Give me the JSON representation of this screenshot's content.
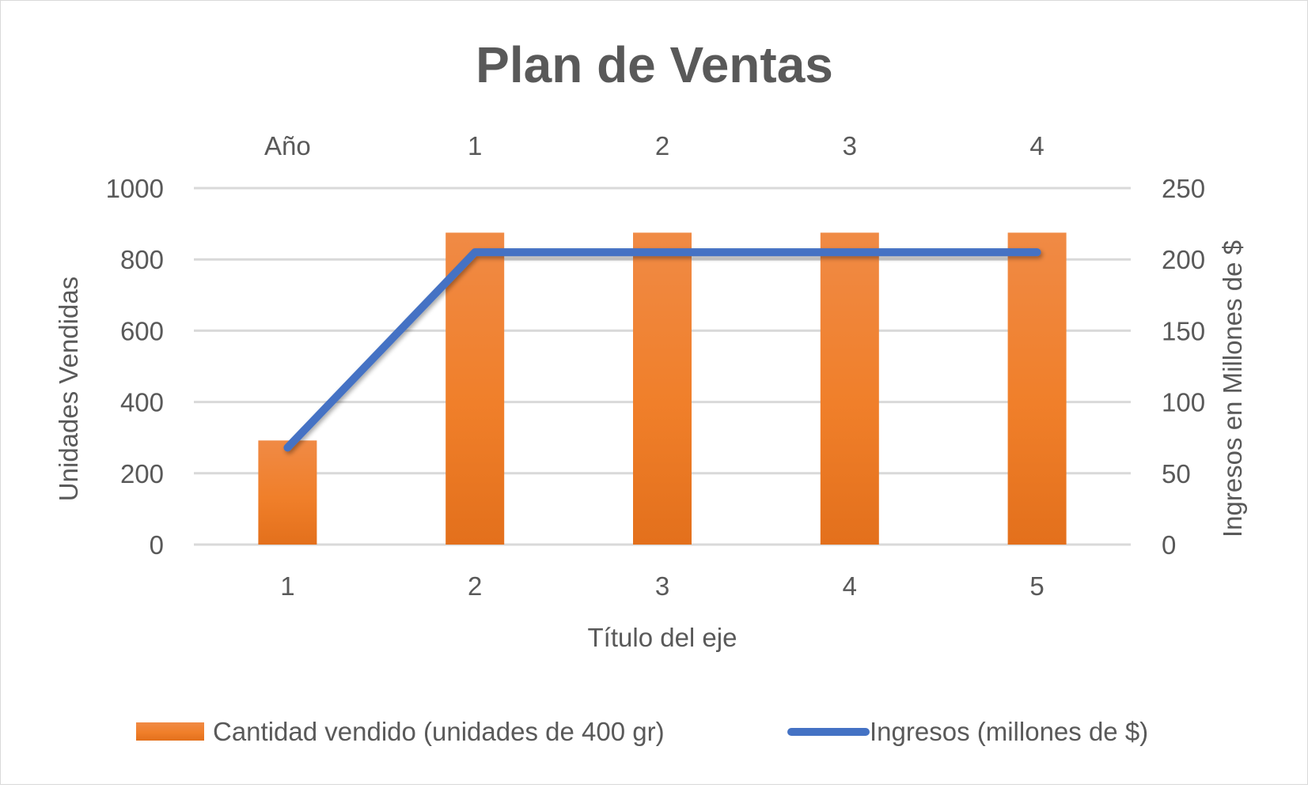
{
  "chart_data": {
    "type": "bar",
    "title": "Plan de Ventas",
    "xlabel": "Título del eje",
    "ylabel": "Unidades Vendidas",
    "y2label": "Ingresos en Millones de $",
    "categories": [
      "1",
      "2",
      "3",
      "4",
      "5"
    ],
    "secondary_categories": [
      "Año",
      "1",
      "2",
      "3",
      "4"
    ],
    "ylim": [
      0,
      1000
    ],
    "y2lim": [
      0,
      250
    ],
    "yticks": [
      "0",
      "200",
      "400",
      "600",
      "800",
      "1000"
    ],
    "y2ticks": [
      "0",
      "50",
      "100",
      "150",
      "200",
      "250"
    ],
    "grid": true,
    "legend_position": "bottom",
    "series": [
      {
        "name": "Cantidad vendido (unidades de 400 gr)",
        "type": "bar",
        "axis": "left",
        "color": "#ED7D31",
        "values": [
          292,
          875,
          875,
          875,
          875
        ]
      },
      {
        "name": "Ingresos (millones de $)",
        "type": "line",
        "axis": "right",
        "color": "#4472C4",
        "values": [
          68,
          205,
          205,
          205,
          205
        ]
      }
    ]
  }
}
